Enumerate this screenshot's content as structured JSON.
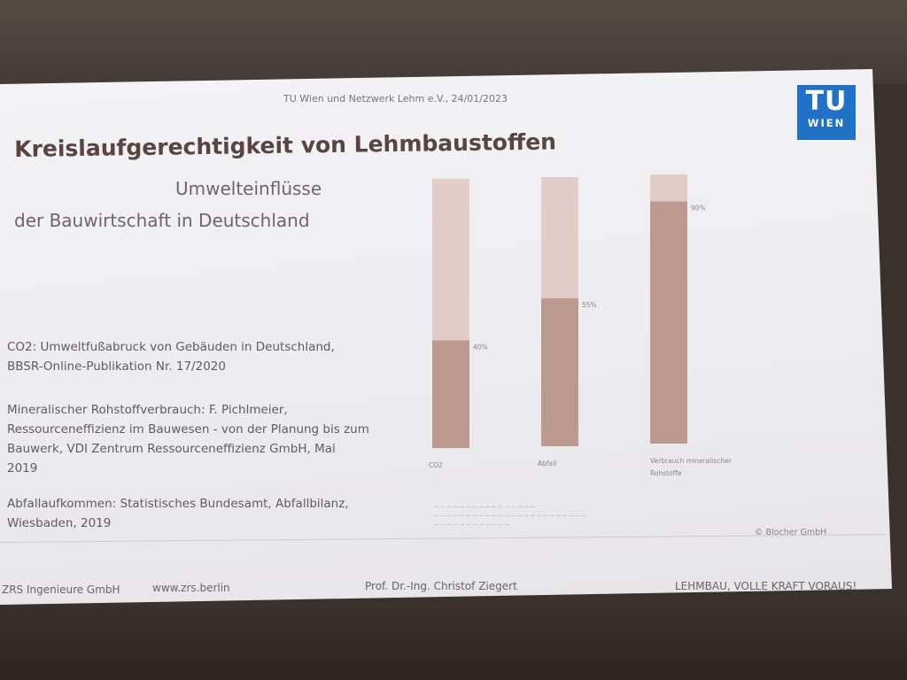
{
  "slide": {
    "header": "TU Wien und Netzwerk Lehm e.V., 24/01/2023",
    "title": "Kreislaufgerechtigkeit von Lehmbaustoffen",
    "subtitle_line1": "Umwelteinflüsse",
    "subtitle_line2": "der Bauwirtschaft in Deutschland",
    "logo": {
      "line1": "TU",
      "line2": "WIEN",
      "color": "#1f72c6"
    },
    "sources": [
      "CO2: Umweltfußabruck von Gebäuden in Deutschland,",
      "BBSR-Online-Publikation Nr. 17/2020",
      "Mineralischer Rohstoffverbrauch: F. Pichlmeier,",
      "Ressourceneffizienz im Bauwesen - von der Planung bis zum",
      "Bauwerk, VDI Zentrum Ressourceneffizienz GmbH, Mai",
      "2019",
      "Abfallaufkommen: Statistisches Bundesamt, Abfallbilanz,",
      "Wiesbaden, 2019"
    ],
    "copyright": "© Blocher GmbH",
    "footer": {
      "company": "ZRS Ingenieure GmbH",
      "website": "www.zrs.berlin",
      "author": "Prof. Dr.-Ing. Christof Ziegert",
      "slogan": "LEHMBAU, VOLLE KRAFT VORAUS!"
    }
  },
  "chart_data": {
    "type": "bar",
    "categories": [
      "CO2",
      "Abfall",
      "Verbrauch mineralischer Rohstoffe"
    ],
    "values": [
      40,
      55,
      90
    ],
    "value_labels": [
      "40%",
      "55%",
      "90%"
    ],
    "ylim": [
      0,
      100
    ],
    "colors": {
      "share": "#bd9a90",
      "rest": "#e3cdc8"
    }
  }
}
